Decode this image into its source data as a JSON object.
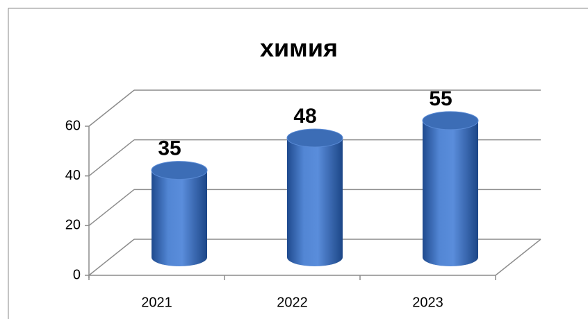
{
  "chart_data": {
    "type": "bar3d",
    "title": "химия",
    "categories": [
      "2021",
      "2022",
      "2023"
    ],
    "values": [
      35,
      48,
      55
    ],
    "color": "#4a7cc6",
    "ylim": [
      0,
      60
    ],
    "yticks": [
      0,
      20,
      40,
      60
    ],
    "grid": true
  }
}
